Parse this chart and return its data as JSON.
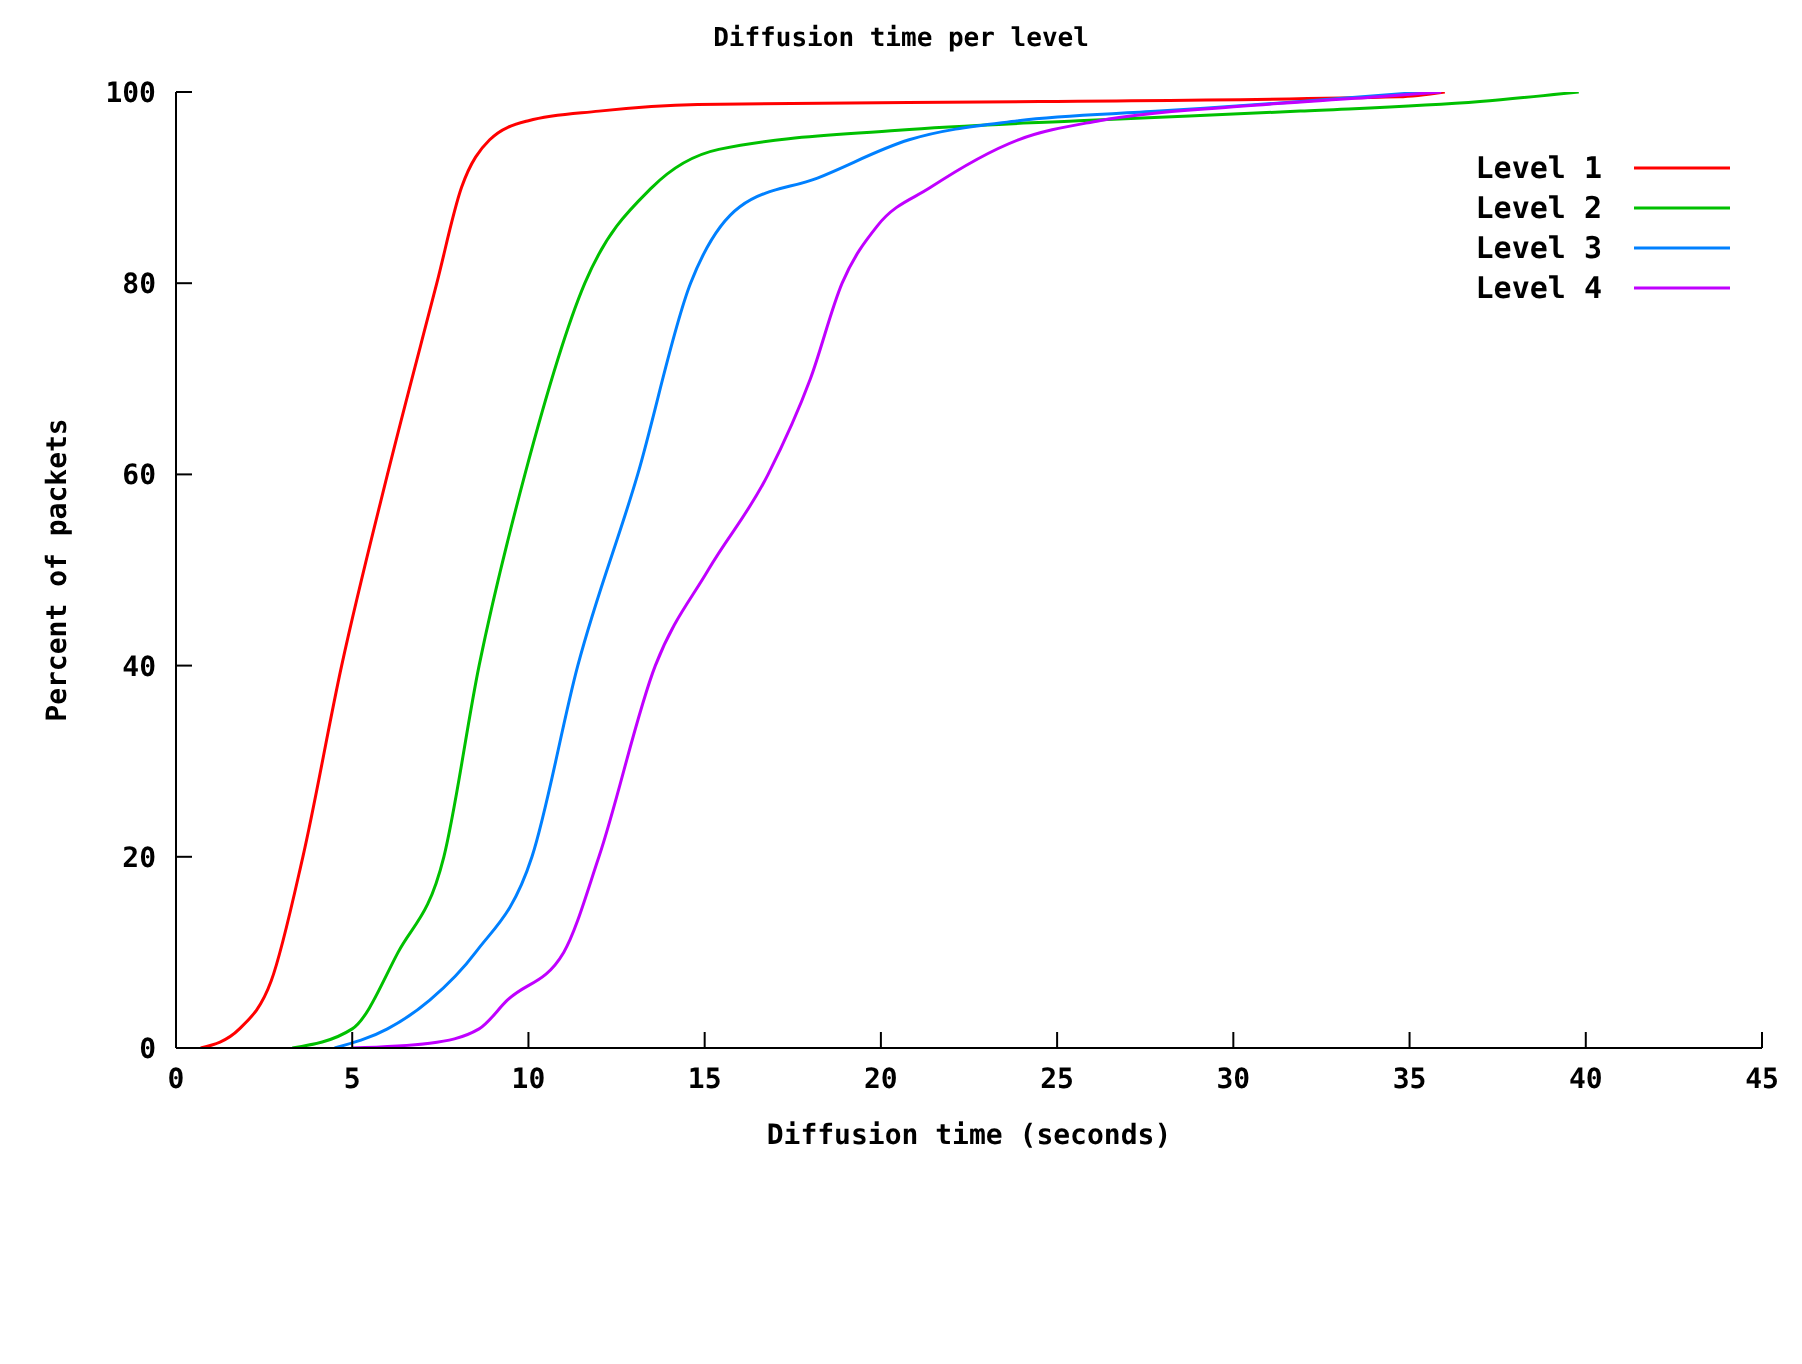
{
  "chart_data": {
    "type": "line",
    "title": "Diffusion time per level",
    "xlabel": "Diffusion time (seconds)",
    "ylabel": "Percent of packets",
    "xlim": [
      0,
      45
    ],
    "ylim": [
      0,
      100
    ],
    "xticks": [
      0,
      5,
      10,
      15,
      20,
      25,
      30,
      35,
      40,
      45
    ],
    "yticks": [
      0,
      20,
      40,
      60,
      80,
      100
    ],
    "grid": false,
    "legend": "top right",
    "marker": "none",
    "line_style": "solid",
    "series": [
      {
        "name": "Level 1",
        "color": "#ff0000",
        "x": [
          0.7,
          1.8,
          2.7,
          3.6,
          4.7,
          6.0,
          7.4,
          8.1,
          8.9,
          10,
          12,
          14.8,
          24.5,
          34.7,
          36
        ],
        "values": [
          0,
          2,
          7,
          20,
          40,
          60,
          80,
          90,
          95,
          97,
          98,
          98.7,
          99,
          99.5,
          100
        ]
      },
      {
        "name": "Level 2",
        "color": "#00c000",
        "x": [
          3.3,
          5,
          6.3,
          7.6,
          8.6,
          9.9,
          11.6,
          13.5,
          15.4,
          20.5,
          25.6,
          31.9,
          37,
          39.8
        ],
        "values": [
          0,
          2,
          10,
          20,
          40,
          60,
          80,
          90,
          94,
          96,
          97,
          98,
          99,
          100
        ]
      },
      {
        "name": "Level 3",
        "color": "#0080ff",
        "x": [
          4.5,
          6.0,
          7.2,
          8.5,
          10.1,
          11.4,
          13.1,
          14.6,
          16,
          18.2,
          20.8,
          23.9,
          27.9,
          31.9,
          35.4
        ],
        "values": [
          0,
          2,
          5,
          10,
          20,
          40,
          60,
          80,
          88,
          91,
          95,
          97,
          98,
          99,
          100
        ]
      },
      {
        "name": "Level 4",
        "color": "#c000ff",
        "x": [
          5,
          7.2,
          8.6,
          9.4,
          11.0,
          12.0,
          13.6,
          15.1,
          16.8,
          18.0,
          18.9,
          19.9,
          21.4,
          23.9,
          26.2,
          30.2,
          34.1,
          35.9
        ],
        "values": [
          0,
          0.5,
          2,
          5,
          10,
          20,
          40,
          50,
          60,
          70,
          80,
          86,
          90,
          95,
          97,
          98.5,
          99.5,
          100
        ]
      }
    ]
  }
}
